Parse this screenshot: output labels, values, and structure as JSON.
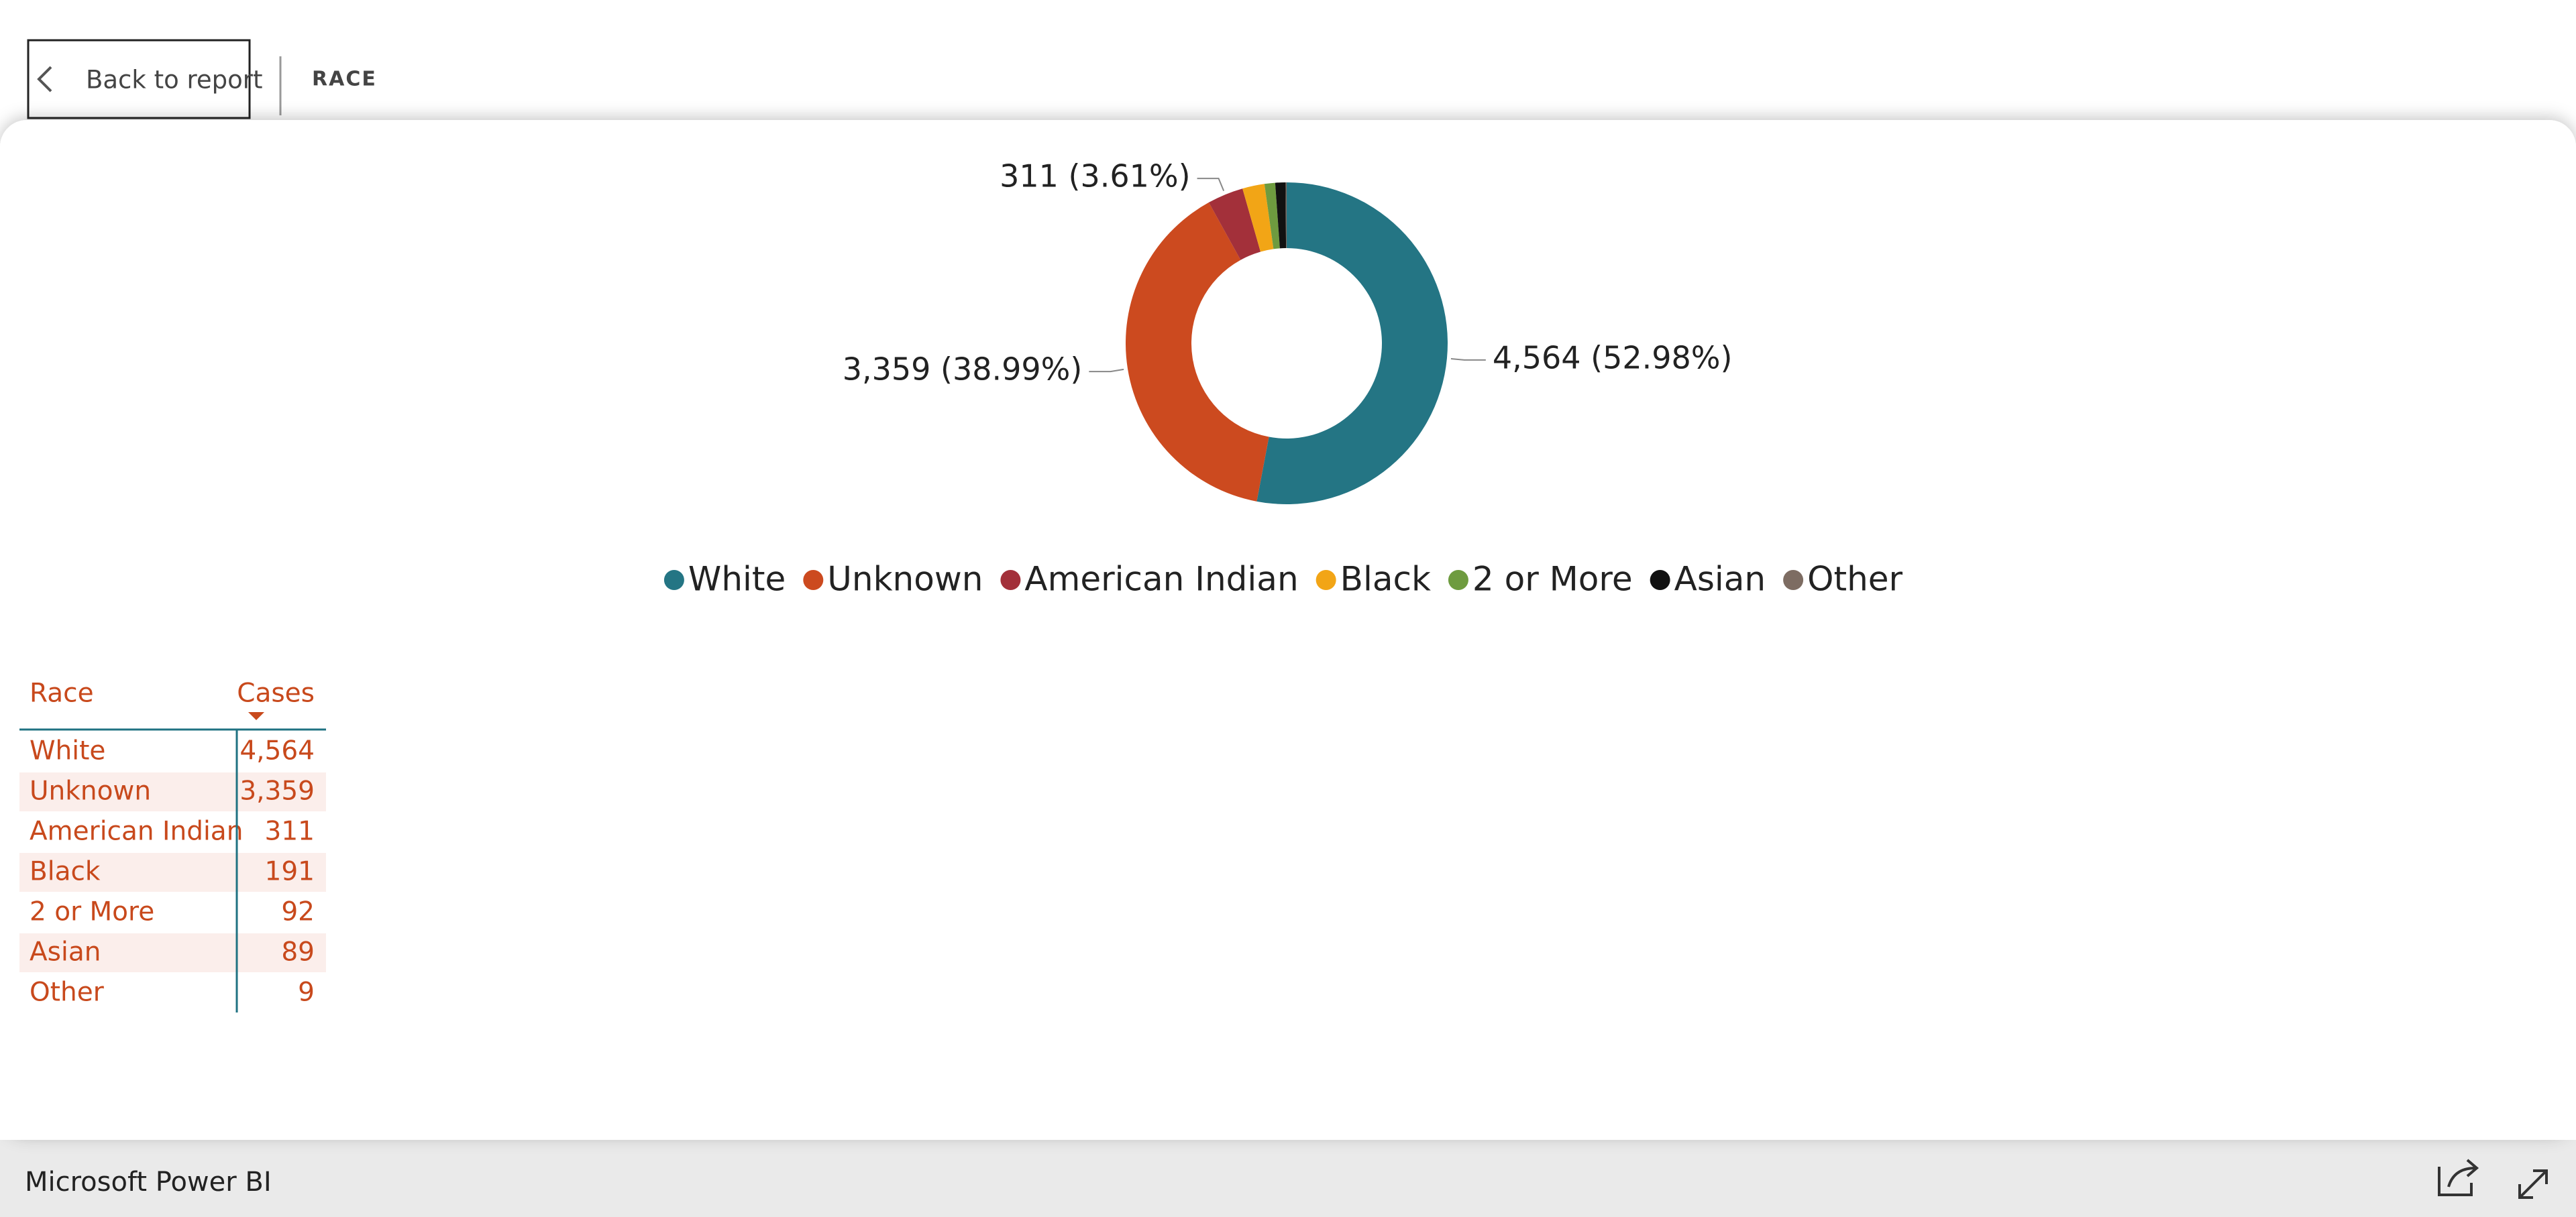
{
  "header": {
    "back_button": "Back to report",
    "title": "RACE"
  },
  "chart_data": {
    "type": "donut",
    "categories": [
      "White",
      "Unknown",
      "American Indian",
      "Black",
      "2 or More",
      "Asian",
      "Other"
    ],
    "values": [
      4564,
      3359,
      311,
      191,
      92,
      89,
      9
    ],
    "value_labels": [
      "4,564 (52.98%)",
      "3,359 (38.99%)",
      "311 (3.61%)",
      null,
      null,
      null,
      null
    ],
    "colors": [
      "#247584",
      "#cc4a1f",
      "#a3303a",
      "#f2a516",
      "#6e9b3f",
      "#111111",
      "#7d6c62"
    ],
    "legend": "bottom"
  },
  "table": {
    "columns": [
      "Race",
      "Cases"
    ],
    "rows": [
      [
        "White",
        "4,564"
      ],
      [
        "Unknown",
        "3,359"
      ],
      [
        "American Indian",
        "311"
      ],
      [
        "Black",
        "191"
      ],
      [
        "2 or More",
        "92"
      ],
      [
        "Asian",
        "89"
      ],
      [
        "Other",
        "9"
      ]
    ]
  },
  "footer": {
    "brand": "Microsoft Power BI"
  }
}
